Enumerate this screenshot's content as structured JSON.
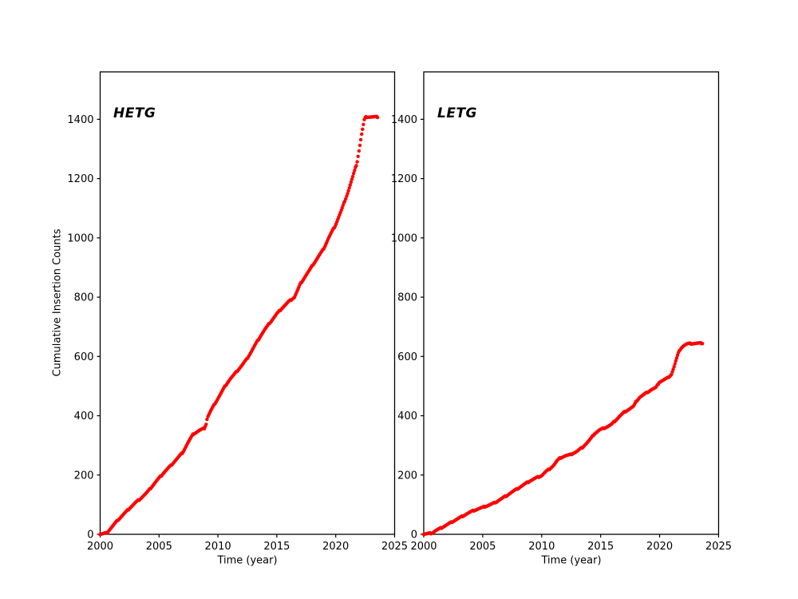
{
  "figure": {
    "background": "#ffffff",
    "text_color": "#000000",
    "marker_color": "#ff0000"
  },
  "chart_data": [
    {
      "type": "scatter",
      "label": "HETG",
      "xlabel": "Time (year)",
      "ylabel": "Cumulative Insertion Counts",
      "xlim": [
        2000,
        2025
      ],
      "ylim": [
        0,
        1560
      ],
      "xticks": [
        2000,
        2005,
        2010,
        2015,
        2020,
        2025
      ],
      "yticks": [
        0,
        200,
        400,
        600,
        800,
        1000,
        1200,
        1400
      ],
      "grid": false,
      "legend": "none",
      "marker": "dot",
      "color": "#ff0000",
      "x": [
        2000.0,
        2000.55,
        2001,
        2001.5,
        2002,
        2002.5,
        2003,
        2003.5,
        2004,
        2004.5,
        2005,
        2005.5,
        2006,
        2006.5,
        2007,
        2007.5,
        2007.9,
        2008.4,
        2008.85,
        2009.0,
        2009.1,
        2009.5,
        2010,
        2010.6,
        2011,
        2011.5,
        2012,
        2012.5,
        2013,
        2013.5,
        2014,
        2014.5,
        2015,
        2015.5,
        2016,
        2016.5,
        2017,
        2017.5,
        2018,
        2018.5,
        2019,
        2019.4,
        2020,
        2020.5,
        2021,
        2021.4,
        2021.8,
        2022.0,
        2022.2,
        2022.45,
        2022.6,
        2023.6
      ],
      "y": [
        0,
        4,
        25,
        48,
        68,
        88,
        107,
        123,
        142,
        166,
        190,
        212,
        232,
        254,
        276,
        312,
        338,
        350,
        358,
        372,
        394,
        425,
        458,
        500,
        522,
        545,
        568,
        594,
        628,
        662,
        692,
        718,
        744,
        765,
        785,
        800,
        845,
        875,
        905,
        935,
        965,
        1000,
        1045,
        1095,
        1150,
        1200,
        1252,
        1300,
        1350,
        1403,
        1408,
        1408
      ]
    },
    {
      "type": "scatter",
      "label": "LETG",
      "xlabel": "Time (year)",
      "ylabel": "",
      "xlim": [
        2000,
        2025
      ],
      "ylim": [
        0,
        1560
      ],
      "xticks": [
        2000,
        2005,
        2010,
        2015,
        2020,
        2025
      ],
      "yticks": [
        0,
        200,
        400,
        600,
        800,
        1000,
        1200,
        1400
      ],
      "grid": false,
      "legend": "none",
      "marker": "dot",
      "color": "#ff0000",
      "x": [
        2000.0,
        2000.7,
        2001,
        2001.5,
        2002,
        2002.5,
        2003,
        2003.5,
        2004,
        2004.5,
        2005,
        2005.5,
        2006,
        2006.5,
        2007,
        2007.5,
        2008,
        2008.5,
        2009,
        2009.5,
        2010,
        2010.3,
        2010.7,
        2011,
        2011.3,
        2011.6,
        2012,
        2012.4,
        2013,
        2013.5,
        2014,
        2014.5,
        2014.9,
        2015.4,
        2015.9,
        2016.2,
        2016.6,
        2017,
        2017.4,
        2017.8,
        2018.05,
        2018.3,
        2018.8,
        2019.3,
        2019.7,
        2019.95,
        2020.3,
        2020.7,
        2021,
        2021.2,
        2021.4,
        2021.6,
        2021.8,
        2022.1,
        2022.4,
        2023.65
      ],
      "y": [
        0,
        4,
        12,
        22,
        33,
        44,
        55,
        66,
        76,
        84,
        91,
        98,
        106,
        118,
        130,
        143,
        155,
        168,
        180,
        190,
        198,
        210,
        222,
        232,
        248,
        258,
        265,
        268,
        280,
        295,
        315,
        340,
        352,
        360,
        370,
        382,
        398,
        412,
        422,
        432,
        450,
        462,
        475,
        488,
        495,
        513,
        520,
        528,
        540,
        562,
        588,
        612,
        628,
        638,
        643,
        645
      ]
    }
  ]
}
